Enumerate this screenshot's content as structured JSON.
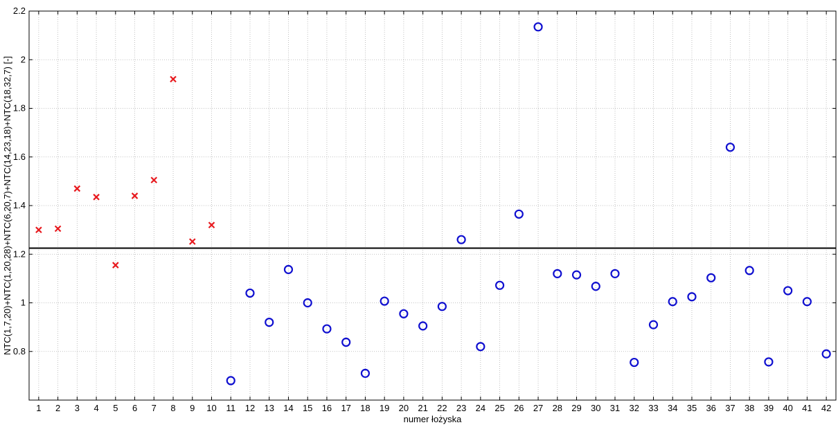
{
  "chart_data": {
    "type": "scatter",
    "title": "",
    "xlabel": "numer łożyska",
    "ylabel": "NTC(1,7,20)+NTC(1,20,28)+NTC(6,20,7)+NTC(14,23,18)+NTC(18,32,7) [-]",
    "xlim": [
      0.5,
      42.5
    ],
    "ylim": [
      0.6,
      2.2
    ],
    "xticks": [
      1,
      2,
      3,
      4,
      5,
      6,
      7,
      8,
      9,
      10,
      11,
      12,
      13,
      14,
      15,
      16,
      17,
      18,
      19,
      20,
      21,
      22,
      23,
      24,
      25,
      26,
      27,
      28,
      29,
      30,
      31,
      32,
      33,
      34,
      35,
      36,
      37,
      38,
      39,
      40,
      41,
      42
    ],
    "yticks": [
      0.8,
      1,
      1.2,
      1.4,
      1.6,
      1.8,
      2,
      2.2
    ],
    "ytick_labels": [
      "0.8",
      "1",
      "1.2",
      "1.4",
      "1.6",
      "1.8",
      "2",
      "2.2"
    ],
    "grid": true,
    "threshold": 1.225,
    "series": [
      {
        "marker": "x",
        "color": "#e8191e",
        "points": [
          {
            "x": 1,
            "y": 1.3
          },
          {
            "x": 2,
            "y": 1.305
          },
          {
            "x": 3,
            "y": 1.47
          },
          {
            "x": 4,
            "y": 1.435
          },
          {
            "x": 5,
            "y": 1.155
          },
          {
            "x": 6,
            "y": 1.44
          },
          {
            "x": 7,
            "y": 1.505
          },
          {
            "x": 8,
            "y": 1.92
          },
          {
            "x": 9,
            "y": 1.252
          },
          {
            "x": 10,
            "y": 1.32
          }
        ]
      },
      {
        "marker": "o",
        "color": "#1010d0",
        "points": [
          {
            "x": 11,
            "y": 0.68
          },
          {
            "x": 12,
            "y": 1.04
          },
          {
            "x": 13,
            "y": 0.92
          },
          {
            "x": 14,
            "y": 1.137
          },
          {
            "x": 15,
            "y": 1.0
          },
          {
            "x": 16,
            "y": 0.893
          },
          {
            "x": 17,
            "y": 0.838
          },
          {
            "x": 18,
            "y": 0.71
          },
          {
            "x": 19,
            "y": 1.007
          },
          {
            "x": 20,
            "y": 0.955
          },
          {
            "x": 21,
            "y": 0.905
          },
          {
            "x": 22,
            "y": 0.985
          },
          {
            "x": 23,
            "y": 1.26
          },
          {
            "x": 24,
            "y": 0.82
          },
          {
            "x": 25,
            "y": 1.072
          },
          {
            "x": 26,
            "y": 1.365
          },
          {
            "x": 27,
            "y": 2.135
          },
          {
            "x": 28,
            "y": 1.12
          },
          {
            "x": 29,
            "y": 1.115
          },
          {
            "x": 30,
            "y": 1.068
          },
          {
            "x": 31,
            "y": 1.12
          },
          {
            "x": 32,
            "y": 0.755
          },
          {
            "x": 33,
            "y": 0.91
          },
          {
            "x": 34,
            "y": 1.005
          },
          {
            "x": 35,
            "y": 1.025
          },
          {
            "x": 36,
            "y": 1.103
          },
          {
            "x": 37,
            "y": 1.64
          },
          {
            "x": 38,
            "y": 1.133
          },
          {
            "x": 39,
            "y": 0.757
          },
          {
            "x": 40,
            "y": 1.05
          },
          {
            "x": 41,
            "y": 1.005
          },
          {
            "x": 42,
            "y": 0.79
          }
        ]
      }
    ]
  }
}
